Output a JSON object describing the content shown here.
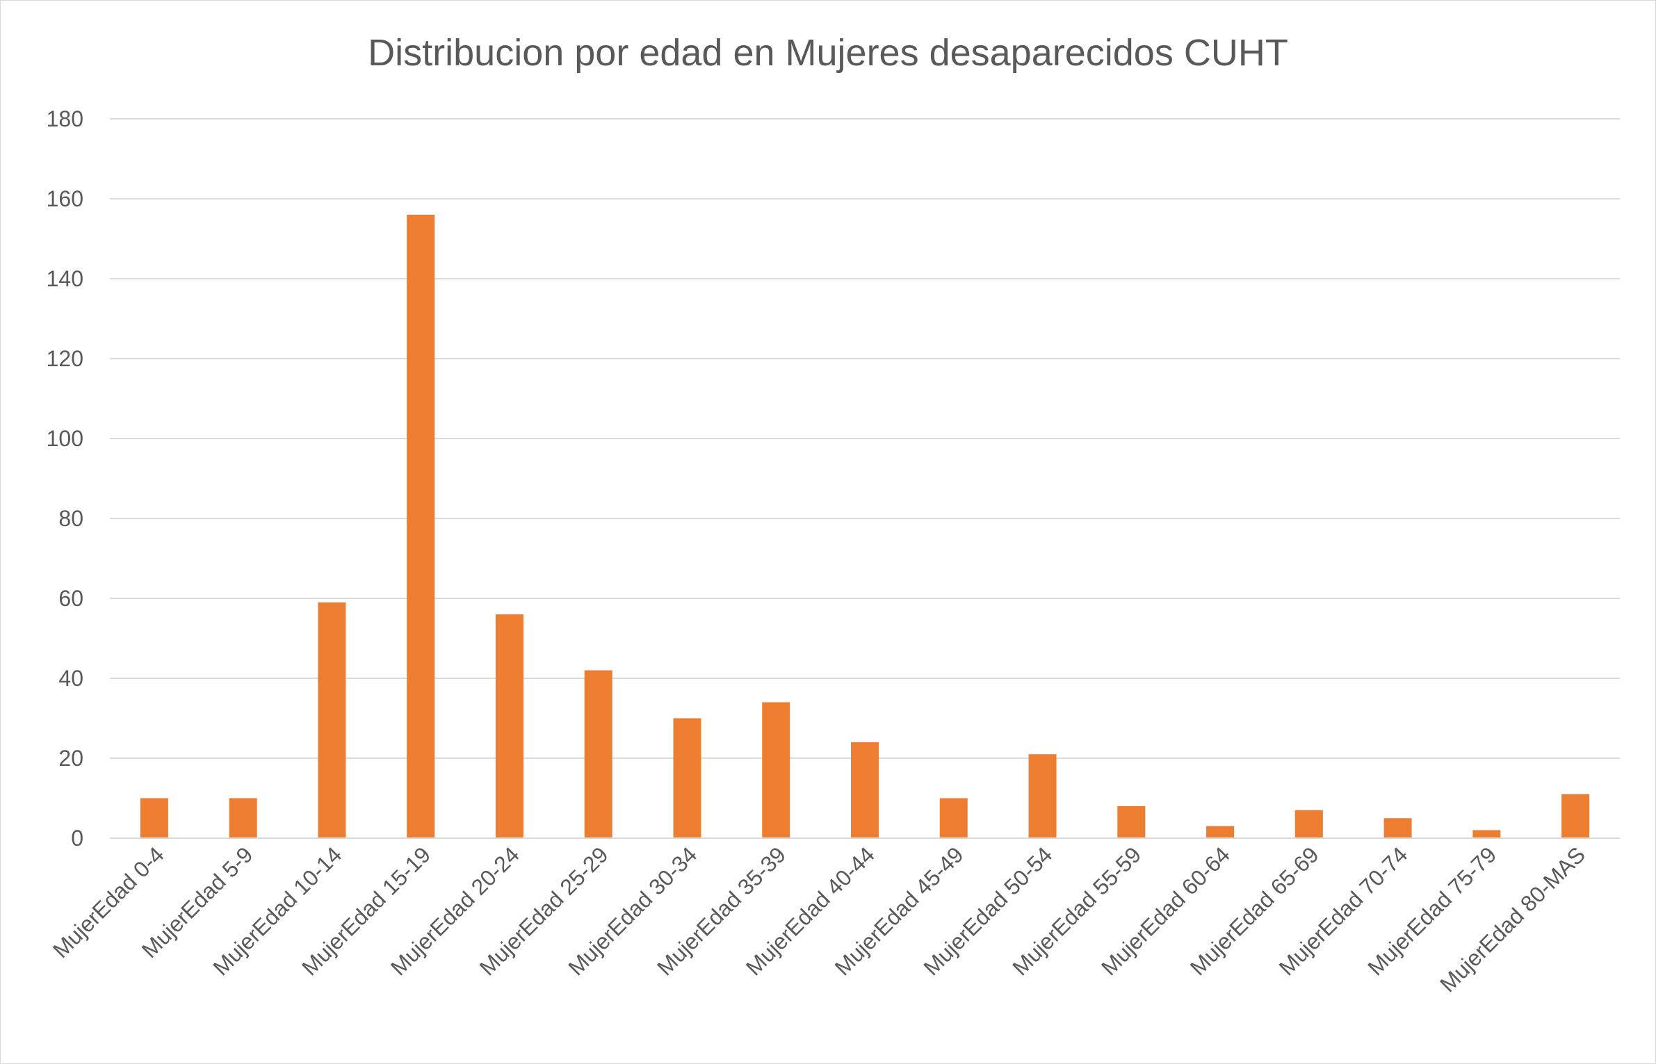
{
  "chart_data": {
    "type": "bar",
    "title": "Distribucion por edad en Mujeres desaparecidos CUHT",
    "xlabel": "",
    "ylabel": "",
    "ylim": [
      0,
      180
    ],
    "yticks": [
      0,
      20,
      40,
      60,
      80,
      100,
      120,
      140,
      160,
      180
    ],
    "grid": true,
    "legend": "none",
    "bar_color": "#ED7D31",
    "categories": [
      "MujerEdad 0-4",
      "MujerEdad 5-9",
      "MujerEdad 10-14",
      "MujerEdad 15-19",
      "MujerEdad 20-24",
      "MujerEdad 25-29",
      "MujerEdad 30-34",
      "MujerEdad 35-39",
      "MujerEdad 40-44",
      "MujerEdad 45-49",
      "MujerEdad 50-54",
      "MujerEdad 55-59",
      "MujerEdad 60-64",
      "MujerEdad 65-69",
      "MujerEdad 70-74",
      "MujerEdad 75-79",
      "MujerEdad 80-MAS"
    ],
    "values": [
      10,
      10,
      59,
      156,
      56,
      42,
      30,
      34,
      24,
      10,
      21,
      8,
      3,
      7,
      5,
      2,
      11
    ]
  }
}
